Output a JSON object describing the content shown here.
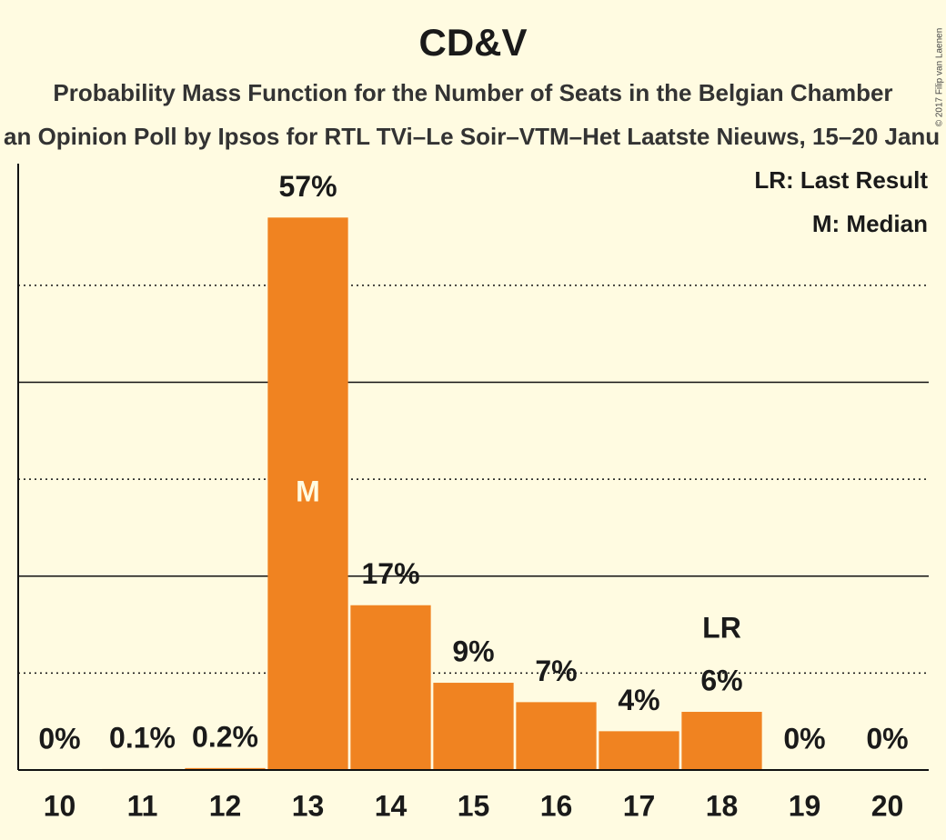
{
  "chart_data": {
    "type": "bar",
    "title": "CD&V",
    "subtitle": "Probability Mass Function for the Number of Seats in the Belgian Chamber",
    "subtitle2": "an Opinion Poll by Ipsos for RTL TVi–Le Soir–VTM–Het Laatste Nieuws, 15–20 Janu",
    "credit": "© 2017 Filip van Laenen",
    "legend": [
      "LR: Last Result",
      "M: Median"
    ],
    "categories": [
      "10",
      "11",
      "12",
      "13",
      "14",
      "15",
      "16",
      "17",
      "18",
      "19",
      "20"
    ],
    "values": [
      0,
      0.1,
      0.2,
      57,
      17,
      9,
      7,
      4,
      6,
      0,
      0
    ],
    "value_labels": [
      "0%",
      "0.1%",
      "0.2%",
      "57%",
      "17%",
      "9%",
      "7%",
      "4%",
      "6%",
      "0%",
      "0%"
    ],
    "annotations": [
      {
        "category": "13",
        "text": "M"
      },
      {
        "category": "18",
        "text": "LR"
      }
    ],
    "color": "#f08321",
    "ylim": [
      0,
      62
    ],
    "yticks": [
      10,
      20,
      30,
      40,
      50
    ],
    "grid": true
  }
}
